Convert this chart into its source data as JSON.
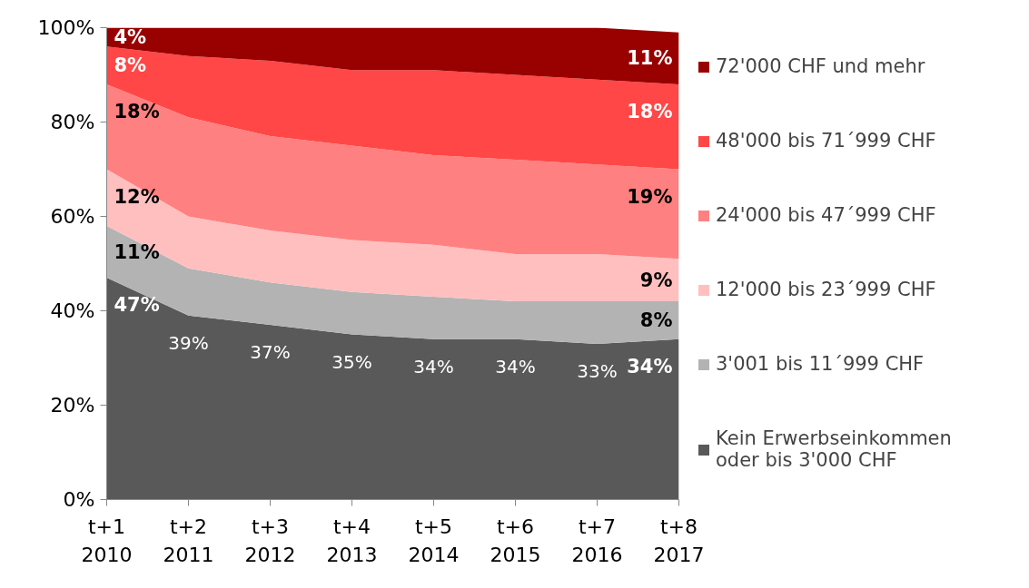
{
  "chart_data": {
    "type": "area",
    "stacked": true,
    "categories": [
      "t+1\n2010",
      "t+2\n2011",
      "t+3\n2012",
      "t+4\n2013",
      "t+5\n2014",
      "t+6\n2015",
      "t+7\n2016",
      "t+8\n2017"
    ],
    "ylim": [
      0,
      100
    ],
    "yticks": [
      {
        "value": 0,
        "label": "0%"
      },
      {
        "value": 20,
        "label": "20%"
      },
      {
        "value": 40,
        "label": "40%"
      },
      {
        "value": 60,
        "label": "60%"
      },
      {
        "value": 80,
        "label": "80%"
      },
      {
        "value": 100,
        "label": "100%"
      }
    ],
    "grid": false,
    "legend": "right",
    "series": [
      {
        "name": "Kein Erwerbseinkommen oder bis 3'000 CHF",
        "color": "#595959",
        "values": [
          47,
          39,
          37,
          35,
          34,
          34,
          33,
          34
        ],
        "value_labels": [
          "47%",
          "39%",
          "37%",
          "35%",
          "34%",
          "34%",
          "33%",
          "34%"
        ]
      },
      {
        "name": "3'001 bis 11´999 CHF",
        "color": "#b3b3b3",
        "values": [
          11,
          10,
          9,
          9,
          9,
          8,
          9,
          8
        ],
        "value_labels": [
          "11%",
          null,
          null,
          null,
          null,
          null,
          null,
          "8%"
        ]
      },
      {
        "name": "12'000 bis 23´999 CHF",
        "color": "#ffbfbf",
        "values": [
          12,
          11,
          11,
          11,
          11,
          10,
          10,
          9
        ],
        "value_labels": [
          "12%",
          null,
          null,
          null,
          null,
          null,
          null,
          "9%"
        ]
      },
      {
        "name": "24'000 bis 47´999 CHF",
        "color": "#ff8080",
        "values": [
          18,
          21,
          20,
          20,
          19,
          20,
          19,
          19
        ],
        "value_labels": [
          "18%",
          null,
          null,
          null,
          null,
          null,
          null,
          "19%"
        ]
      },
      {
        "name": "48'000 bis 71´999 CHF",
        "color": "#ff4747",
        "values": [
          8,
          13,
          16,
          16,
          18,
          18,
          18,
          18
        ],
        "value_labels": [
          "8%",
          null,
          null,
          null,
          null,
          null,
          null,
          "18%"
        ]
      },
      {
        "name": "72'000 CHF und mehr",
        "color": "#990000",
        "values": [
          4,
          6,
          7,
          9,
          9,
          10,
          11,
          11
        ],
        "value_labels": [
          "4%",
          null,
          null,
          null,
          null,
          null,
          null,
          "11%"
        ]
      }
    ]
  }
}
